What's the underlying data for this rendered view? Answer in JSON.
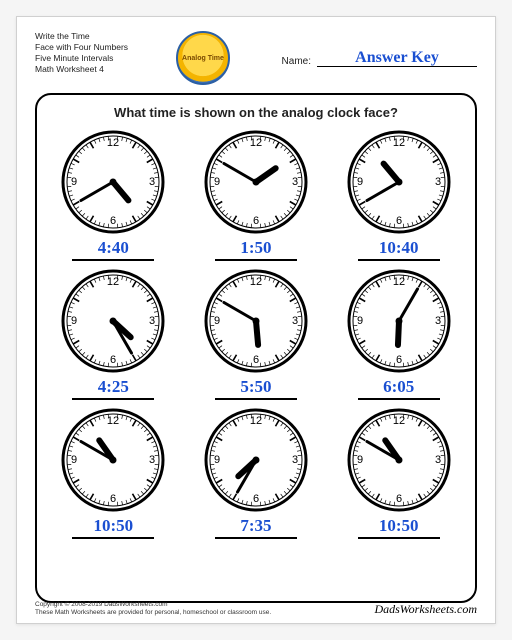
{
  "header": {
    "lines": [
      "Write the Time",
      "Face with Four Numbers",
      "Five Minute Intervals",
      "Math Worksheet 4"
    ],
    "logo_text": "Analog Time",
    "name_label": "Name:",
    "name_value": "Answer Key"
  },
  "question": "What time is shown on the analog clock face?",
  "clock_style": {
    "face_fill": "#ffffff",
    "face_stroke": "#000000",
    "outer_stroke_w": 3,
    "num_font": 11,
    "num_color": "#000000",
    "tick_color": "#000000",
    "hour_hand_w": 6,
    "minute_hand_w": 3
  },
  "clocks": [
    {
      "hour": 4,
      "minute": 40,
      "answer": "4:40"
    },
    {
      "hour": 1,
      "minute": 50,
      "answer": "1:50"
    },
    {
      "hour": 10,
      "minute": 40,
      "answer": "10:40"
    },
    {
      "hour": 4,
      "minute": 25,
      "answer": "4:25"
    },
    {
      "hour": 5,
      "minute": 50,
      "answer": "5:50"
    },
    {
      "hour": 6,
      "minute": 5,
      "answer": "6:05"
    },
    {
      "hour": 10,
      "minute": 50,
      "answer": "10:50"
    },
    {
      "hour": 7,
      "minute": 35,
      "answer": "7:35"
    },
    {
      "hour": 10,
      "minute": 50,
      "answer": "10:50"
    }
  ],
  "footer": {
    "copyright": "Copyright © 2008-2019 DadsWorksheets.com",
    "note": "These Math Worksheets are provided for personal, homeschool or classroom use.",
    "brand": "DadsWorksheets.com"
  },
  "answer_color": "#1a4fd1"
}
